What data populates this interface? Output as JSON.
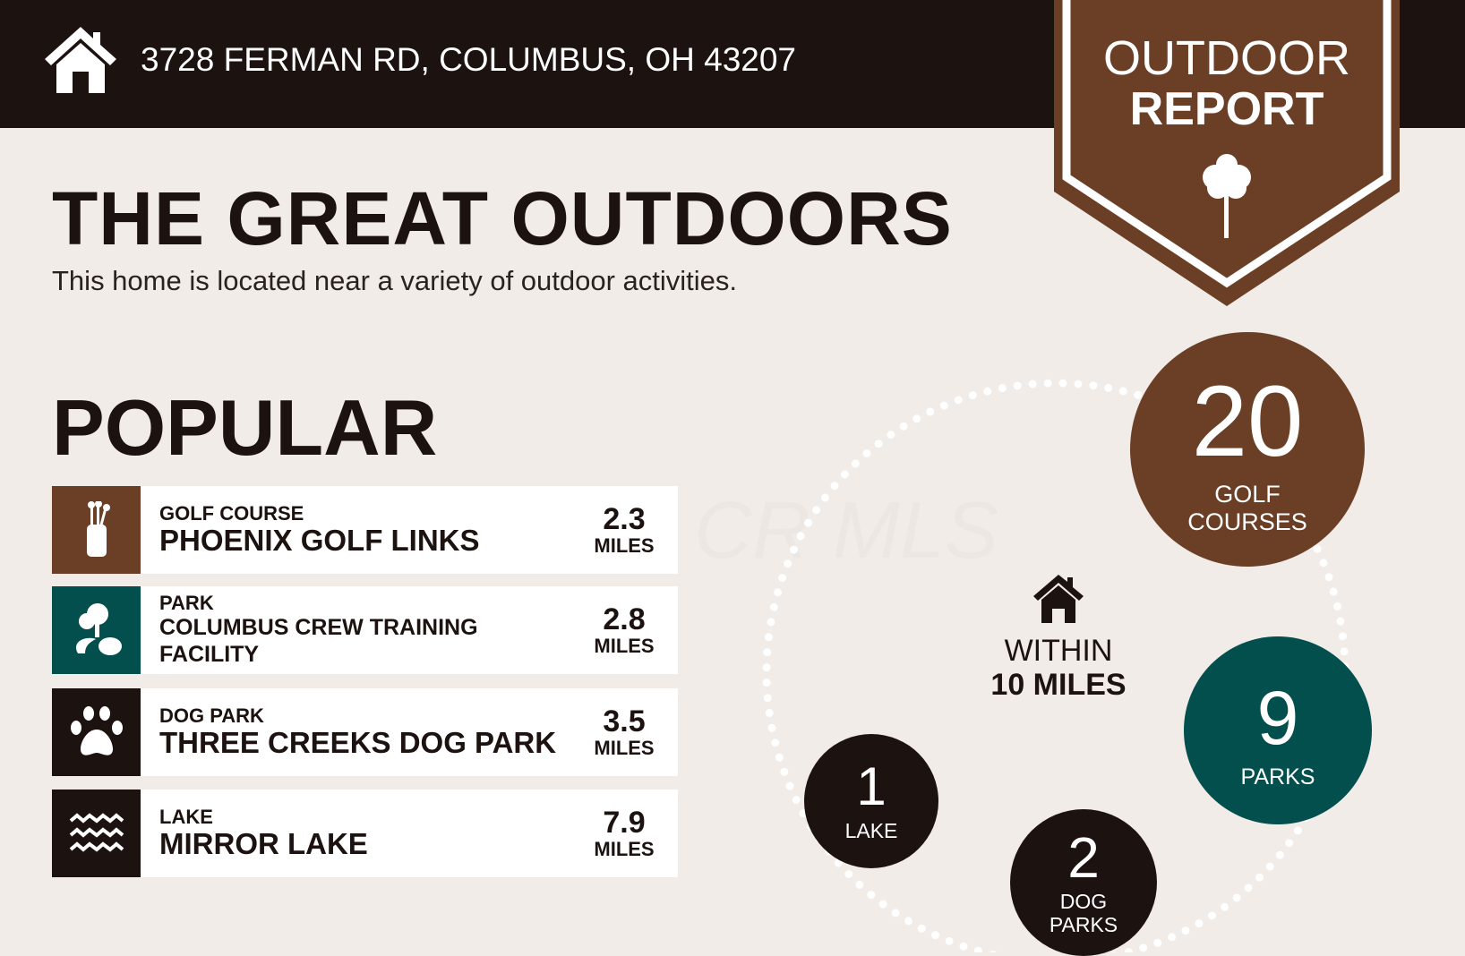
{
  "header": {
    "address": "3728 FERMAN RD, COLUMBUS, OH 43207",
    "icon": "home-icon"
  },
  "badge": {
    "line1": "OUTDOOR",
    "line2": "REPORT",
    "icon": "tree-icon"
  },
  "title": "THE GREAT OUTDOORS",
  "subtitle": "This home is located near a variety of outdoor activities.",
  "popular": {
    "heading": "POPULAR",
    "items": [
      {
        "category": "GOLF COURSE",
        "name": "PHOENIX GOLF LINKS",
        "distance": "2.3",
        "unit": "MILES",
        "icon": "golf-bag-icon",
        "color": "#6b3f26"
      },
      {
        "category": "PARK",
        "name": "COLUMBUS CREW TRAINING FACILITY",
        "distance": "2.8",
        "unit": "MILES",
        "icon": "park-trees-icon",
        "color": "#024f4d"
      },
      {
        "category": "DOG PARK",
        "name": "THREE CREEKS DOG PARK",
        "distance": "3.5",
        "unit": "MILES",
        "icon": "paw-icon",
        "color": "#1c1210"
      },
      {
        "category": "LAKE",
        "name": "MIRROR LAKE",
        "distance": "7.9",
        "unit": "MILES",
        "icon": "waves-icon",
        "color": "#1c1210"
      }
    ]
  },
  "summary": {
    "within_line1": "WITHIN",
    "within_line2": "10 MILES",
    "counts": [
      {
        "value": "20",
        "label1": "GOLF",
        "label2": "COURSES",
        "color": "#6b3f26"
      },
      {
        "value": "9",
        "label1": "PARKS",
        "color": "#024f4d"
      },
      {
        "value": "1",
        "label1": "LAKE",
        "color": "#1c1210"
      },
      {
        "value": "2",
        "label1": "DOG",
        "label2": "PARKS",
        "color": "#1c1210"
      }
    ]
  },
  "watermark": "CR MLS",
  "colors": {
    "dark": "#1c1210",
    "brown": "#6b3f26",
    "teal": "#024f4d",
    "background": "#f1ece8"
  }
}
